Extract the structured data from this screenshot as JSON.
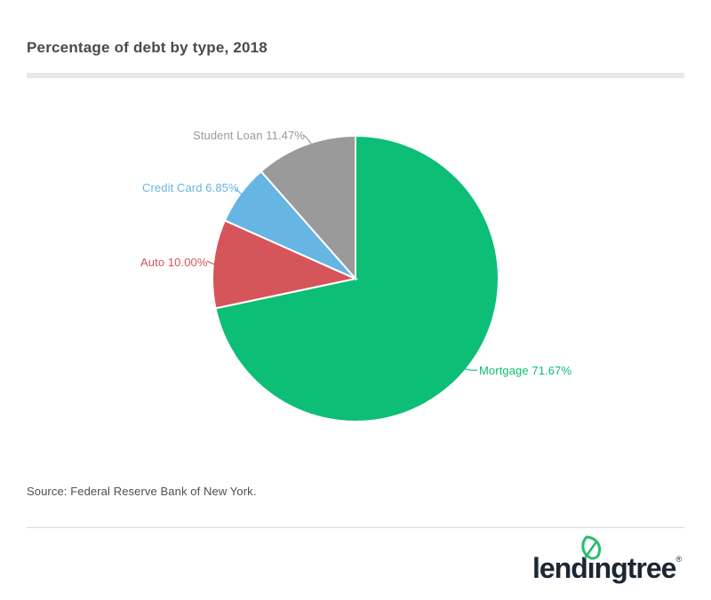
{
  "header": {
    "title": "Percentage of debt by type, 2018"
  },
  "chart_data": {
    "type": "pie",
    "title": "Percentage of debt by type, 2018",
    "unit": "%",
    "direction": "clockwise",
    "start_angle": "12-o-clock",
    "legend": "none",
    "label_style": "outside-with-leader-lines",
    "slices": [
      {
        "label": "Mortgage",
        "value": 71.67,
        "display": "Mortgage 71.67%",
        "color": "#0dbe76"
      },
      {
        "label": "Auto",
        "value": 10.0,
        "display": "Auto 10.00%",
        "color": "#d6555a"
      },
      {
        "label": "Credit Card",
        "value": 6.85,
        "display": "Credit Card 6.85%",
        "color": "#66b5e3"
      },
      {
        "label": "Student Loan",
        "value": 11.47,
        "display": "Student Loan 11.47%",
        "color": "#9a9a9a"
      }
    ]
  },
  "footer": {
    "source": "Source: Federal Reserve Bank of New York.",
    "logo": {
      "text": "lendingtree",
      "registered": "®",
      "color": "#1b2733",
      "leaf_color": "#2bbd6e"
    }
  },
  "theme": {
    "background": "#ffffff",
    "title_color": "#4a4a4a",
    "divider_color": "#e8e8e8",
    "rule_color": "#d9d9d9",
    "slice_separator_color": "#ffffff"
  }
}
